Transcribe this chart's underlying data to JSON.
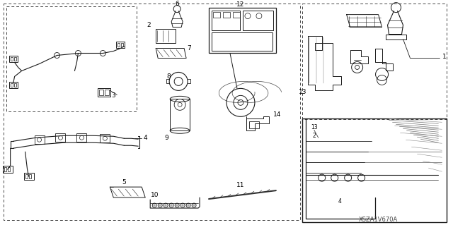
{
  "bg_color": "#ffffff",
  "line_color": "#1a1a1a",
  "watermark": "XSZA1V670A",
  "fig_width": 6.4,
  "fig_height": 3.19,
  "dpi": 100
}
